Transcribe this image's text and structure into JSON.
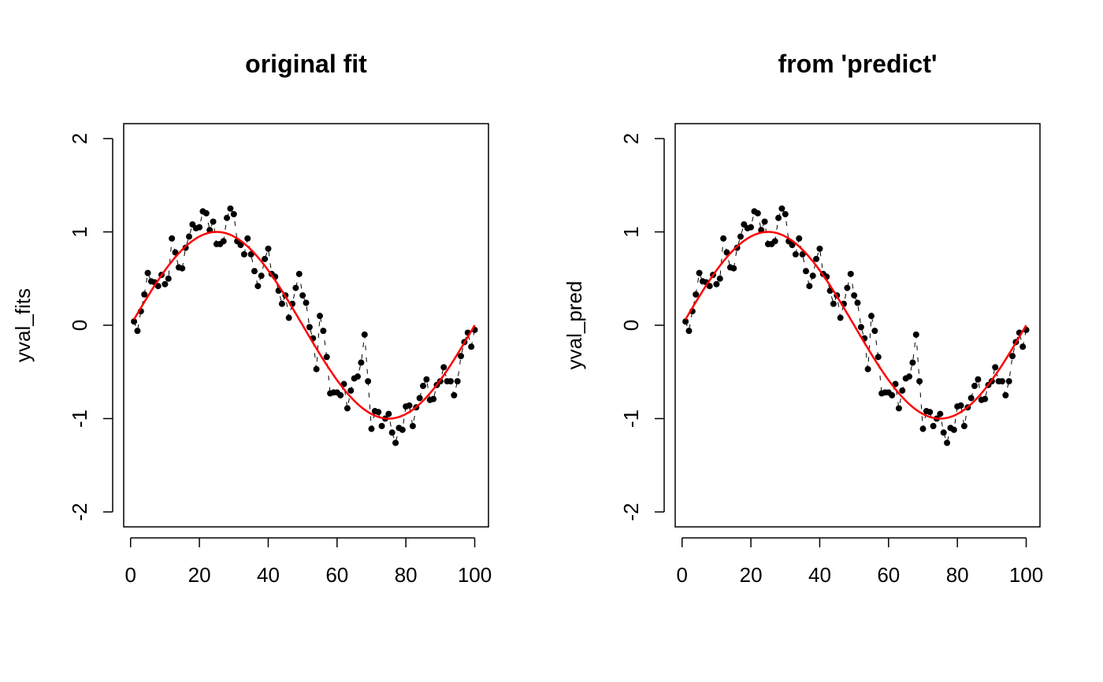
{
  "chart_data": [
    {
      "type": "scatter",
      "title": "original fit",
      "xlabel": "",
      "ylabel": "yval_fits",
      "xlim": [
        -2,
        104
      ],
      "ylim": [
        -2.16,
        2.16
      ],
      "xticks": [
        "0",
        "20",
        "40",
        "60",
        "80",
        "100"
      ],
      "yticks": [
        "-2",
        "-1",
        "0",
        "1",
        "2"
      ],
      "grid": false,
      "points_color": "#000000",
      "curve_color": "#ff0000",
      "x": [
        1,
        2,
        3,
        4,
        5,
        6,
        7,
        8,
        9,
        10,
        11,
        12,
        13,
        14,
        15,
        16,
        17,
        18,
        19,
        20,
        21,
        22,
        23,
        24,
        25,
        26,
        27,
        28,
        29,
        30,
        31,
        32,
        33,
        34,
        35,
        36,
        37,
        38,
        39,
        40,
        41,
        42,
        43,
        44,
        45,
        46,
        47,
        48,
        49,
        50,
        51,
        52,
        53,
        54,
        55,
        56,
        57,
        58,
        59,
        60,
        61,
        62,
        63,
        64,
        65,
        66,
        67,
        68,
        69,
        70,
        71,
        72,
        73,
        74,
        75,
        76,
        77,
        78,
        79,
        80,
        81,
        82,
        83,
        84,
        85,
        86,
        87,
        88,
        89,
        90,
        91,
        92,
        93,
        94,
        95,
        96,
        97,
        98,
        99,
        100
      ],
      "y": [
        0.04,
        -0.06,
        0.15,
        0.33,
        0.56,
        0.47,
        0.46,
        0.42,
        0.54,
        0.44,
        0.5,
        0.93,
        0.78,
        0.62,
        0.61,
        0.83,
        0.95,
        1.08,
        1.04,
        1.05,
        1.22,
        1.2,
        1.02,
        1.11,
        0.87,
        0.87,
        0.9,
        1.15,
        1.25,
        1.19,
        0.9,
        0.86,
        0.76,
        0.93,
        0.76,
        0.58,
        0.42,
        0.53,
        0.71,
        0.82,
        0.55,
        0.52,
        0.37,
        0.23,
        0.32,
        0.08,
        0.23,
        0.4,
        0.55,
        0.32,
        0.24,
        -0.02,
        -0.14,
        -0.47,
        0.1,
        -0.06,
        -0.34,
        -0.73,
        -0.72,
        -0.72,
        -0.75,
        -0.63,
        -0.89,
        -0.7,
        -0.57,
        -0.55,
        -0.4,
        -0.1,
        -0.6,
        -1.11,
        -0.92,
        -0.93,
        -1.08,
        -1.0,
        -0.95,
        -1.15,
        -1.26,
        -1.1,
        -1.12,
        -0.87,
        -0.86,
        -1.08,
        -0.88,
        -0.78,
        -0.65,
        -0.58,
        -0.8,
        -0.79,
        -0.64,
        -0.6,
        -0.45,
        -0.6,
        -0.6,
        -0.75,
        -0.6,
        -0.33,
        -0.18,
        -0.08,
        -0.23,
        -0.05
      ],
      "curve": "sin(2*pi*x/100)"
    },
    {
      "type": "scatter",
      "title": "from 'predict'",
      "xlabel": "",
      "ylabel": "yval_pred",
      "xlim": [
        -2,
        104
      ],
      "ylim": [
        -2.16,
        2.16
      ],
      "xticks": [
        "0",
        "20",
        "40",
        "60",
        "80",
        "100"
      ],
      "yticks": [
        "-2",
        "-1",
        "0",
        "1",
        "2"
      ],
      "grid": false,
      "points_color": "#000000",
      "curve_color": "#ff0000",
      "x": [
        1,
        2,
        3,
        4,
        5,
        6,
        7,
        8,
        9,
        10,
        11,
        12,
        13,
        14,
        15,
        16,
        17,
        18,
        19,
        20,
        21,
        22,
        23,
        24,
        25,
        26,
        27,
        28,
        29,
        30,
        31,
        32,
        33,
        34,
        35,
        36,
        37,
        38,
        39,
        40,
        41,
        42,
        43,
        44,
        45,
        46,
        47,
        48,
        49,
        50,
        51,
        52,
        53,
        54,
        55,
        56,
        57,
        58,
        59,
        60,
        61,
        62,
        63,
        64,
        65,
        66,
        67,
        68,
        69,
        70,
        71,
        72,
        73,
        74,
        75,
        76,
        77,
        78,
        79,
        80,
        81,
        82,
        83,
        84,
        85,
        86,
        87,
        88,
        89,
        90,
        91,
        92,
        93,
        94,
        95,
        96,
        97,
        98,
        99,
        100
      ],
      "y": [
        0.04,
        -0.06,
        0.15,
        0.33,
        0.56,
        0.47,
        0.46,
        0.42,
        0.54,
        0.44,
        0.5,
        0.93,
        0.78,
        0.62,
        0.61,
        0.83,
        0.95,
        1.08,
        1.04,
        1.05,
        1.22,
        1.2,
        1.02,
        1.11,
        0.87,
        0.87,
        0.9,
        1.15,
        1.25,
        1.19,
        0.9,
        0.86,
        0.76,
        0.93,
        0.76,
        0.58,
        0.42,
        0.53,
        0.71,
        0.82,
        0.55,
        0.52,
        0.37,
        0.23,
        0.32,
        0.08,
        0.23,
        0.4,
        0.55,
        0.32,
        0.24,
        -0.02,
        -0.14,
        -0.47,
        0.1,
        -0.06,
        -0.34,
        -0.73,
        -0.72,
        -0.72,
        -0.75,
        -0.63,
        -0.89,
        -0.7,
        -0.57,
        -0.55,
        -0.4,
        -0.1,
        -0.6,
        -1.11,
        -0.92,
        -0.93,
        -1.08,
        -1.0,
        -0.95,
        -1.15,
        -1.26,
        -1.1,
        -1.12,
        -0.87,
        -0.86,
        -1.08,
        -0.88,
        -0.78,
        -0.65,
        -0.58,
        -0.8,
        -0.79,
        -0.64,
        -0.6,
        -0.45,
        -0.6,
        -0.6,
        -0.75,
        -0.6,
        -0.33,
        -0.18,
        -0.08,
        -0.23,
        -0.05
      ],
      "curve": "sin(2*pi*x/100)"
    }
  ]
}
